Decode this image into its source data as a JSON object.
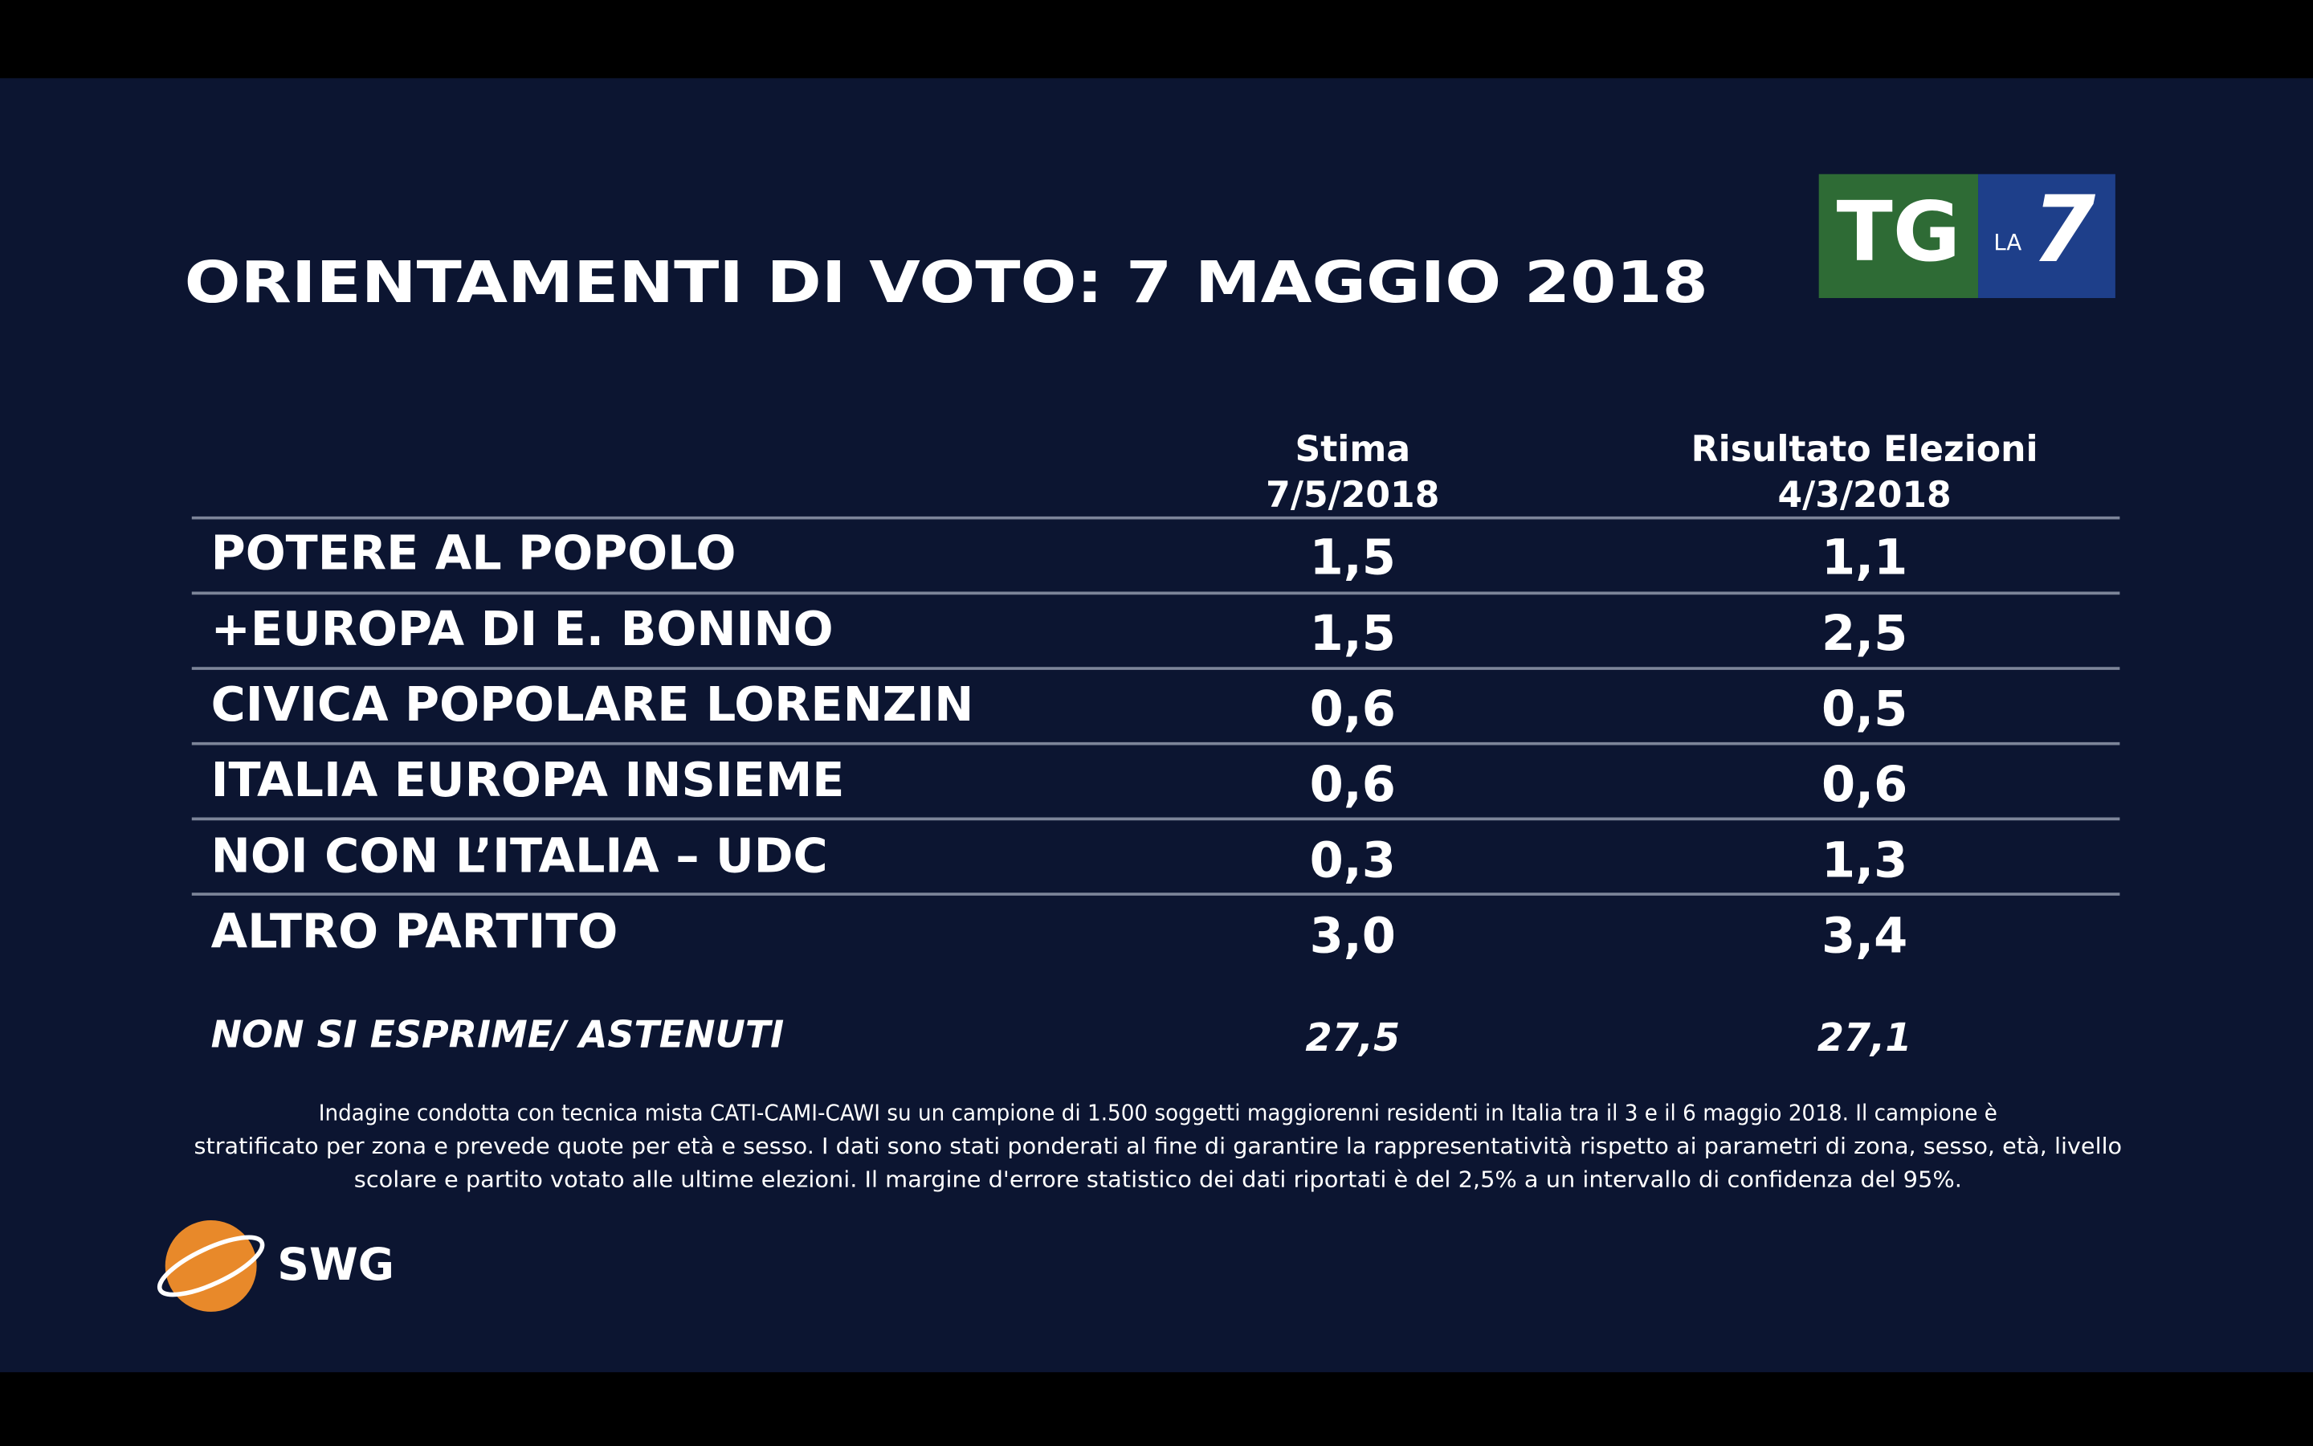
{
  "header": {
    "title": "ORIENTAMENTI DI VOTO: 7 MAGGIO 2018"
  },
  "logo": {
    "tg": "TG",
    "la": "LA",
    "seven": "7"
  },
  "table": {
    "columns": [
      {
        "label": "Stima",
        "date": "7/5/2018"
      },
      {
        "label": "Risultato Elezioni",
        "date": "4/3/2018"
      }
    ],
    "rows": [
      [
        "POTERE AL POPOLO",
        "1,5",
        "1,1"
      ],
      [
        "+EUROPA DI E. BONINO",
        "1,5",
        "2,5"
      ],
      [
        "CIVICA POPOLARE LORENZIN",
        "0,6",
        "0,5"
      ],
      [
        "ITALIA EUROPA INSIEME",
        "0,6",
        "0,6"
      ],
      [
        "NOI CON L’ITALIA – UDC",
        "0,3",
        "1,3"
      ],
      [
        "ALTRO PARTITO",
        "3,0",
        "3,4"
      ]
    ],
    "footer_row": [
      "NON SI ESPRIME/ ASTENUTI",
      "27,5",
      "27,1"
    ]
  },
  "footnote": [
    "Indagine condotta con tecnica mista CATI-CAMI-CAWI su un campione di 1.500 soggetti maggiorenni residenti in Italia tra il 3 e il 6 maggio 2018. Il campione è",
    "stratificato per zona e prevede quote per età e sesso. I dati sono stati ponderati al fine di garantire la rappresentatività rispetto ai parametri di zona, sesso, età, livello",
    "scolare e partito votato alle ultime elezioni. Il margine d'errore statistico dei dati riportati è del 2,5% a un intervallo di confidenza del 95%."
  ],
  "brand": "SWG"
}
